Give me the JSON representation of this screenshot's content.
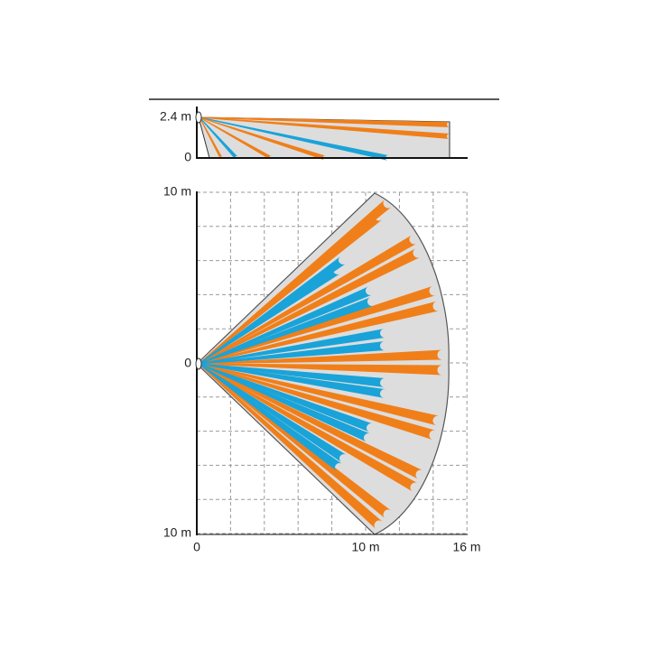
{
  "side_view": {
    "y_labels": [
      "2.4 m",
      "0"
    ]
  },
  "top_view": {
    "y_labels": [
      "10 m",
      "0",
      "10 m"
    ],
    "x_labels": [
      "0",
      "10 m",
      "16 m"
    ]
  }
}
